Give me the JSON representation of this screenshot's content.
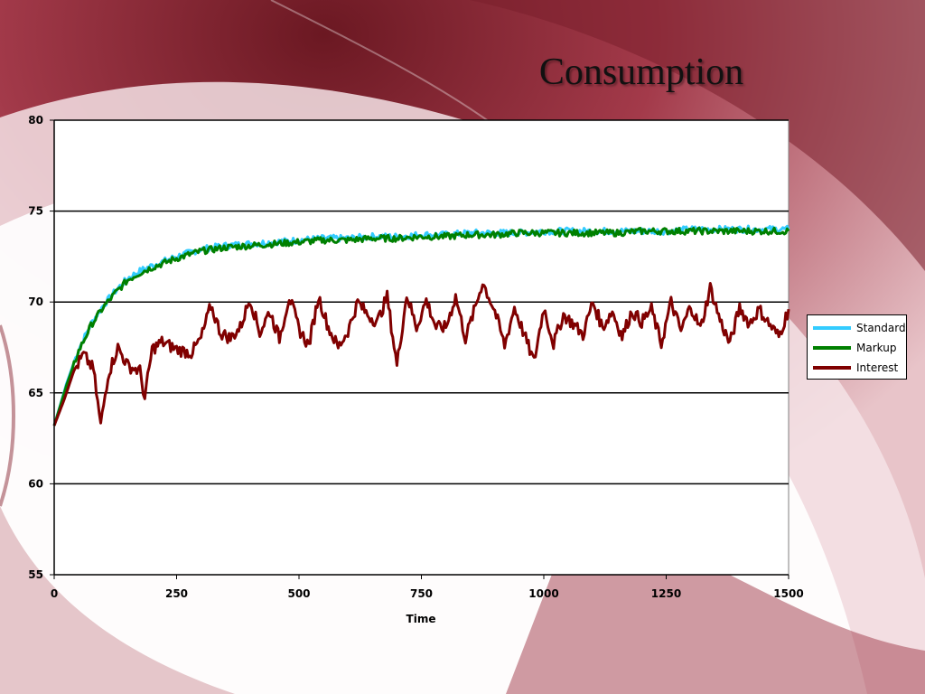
{
  "slide": {
    "title": "Consumption"
  },
  "colors": {
    "standard": "#33ccff",
    "markup": "#008000",
    "interest": "#800000",
    "grid": "#000000"
  },
  "chart_data": {
    "type": "line",
    "title": "",
    "xlabel": "Time",
    "ylabel": "",
    "xlim": [
      0,
      1500
    ],
    "ylim": [
      55,
      80
    ],
    "x_ticks": [
      "0",
      "250",
      "500",
      "750",
      "1000",
      "1250",
      "1500"
    ],
    "y_ticks": [
      "55",
      "60",
      "65",
      "70",
      "75",
      "80"
    ],
    "grid": "horizontal",
    "legend_position": "right",
    "series": [
      {
        "name": "Standard",
        "color": "#33ccff",
        "x": [
          0,
          25,
          50,
          75,
          100,
          125,
          150,
          175,
          200,
          250,
          300,
          350,
          400,
          450,
          500,
          550,
          600,
          650,
          700,
          750,
          800,
          850,
          900,
          950,
          1000,
          1050,
          1100,
          1150,
          1200,
          1250,
          1300,
          1350,
          1400,
          1450,
          1500
        ],
        "y": [
          63.2,
          65.5,
          67.4,
          68.8,
          69.8,
          70.6,
          71.3,
          71.7,
          72.0,
          72.5,
          72.9,
          73.1,
          73.2,
          73.3,
          73.4,
          73.5,
          73.5,
          73.6,
          73.6,
          73.7,
          73.7,
          73.8,
          73.8,
          73.8,
          73.9,
          73.9,
          73.9,
          73.9,
          73.9,
          73.9,
          74.0,
          74.0,
          74.0,
          74.0,
          74.0
        ]
      },
      {
        "name": "Markup",
        "color": "#008000",
        "x": [
          0,
          25,
          50,
          75,
          100,
          125,
          150,
          175,
          200,
          250,
          300,
          350,
          400,
          450,
          500,
          550,
          600,
          650,
          700,
          750,
          800,
          850,
          900,
          950,
          1000,
          1050,
          1100,
          1150,
          1200,
          1250,
          1300,
          1350,
          1400,
          1450,
          1500
        ],
        "y": [
          63.2,
          65.4,
          67.3,
          68.7,
          69.7,
          70.5,
          71.2,
          71.6,
          71.9,
          72.4,
          72.8,
          73.0,
          73.1,
          73.2,
          73.3,
          73.4,
          73.4,
          73.5,
          73.5,
          73.6,
          73.6,
          73.7,
          73.7,
          73.8,
          73.8,
          73.8,
          73.8,
          73.8,
          73.9,
          73.9,
          73.9,
          73.9,
          73.9,
          73.9,
          73.9
        ]
      },
      {
        "name": "Interest",
        "color": "#800000",
        "x": [
          0,
          20,
          40,
          60,
          80,
          95,
          110,
          130,
          150,
          175,
          185,
          200,
          220,
          250,
          280,
          300,
          320,
          340,
          360,
          380,
          400,
          420,
          440,
          460,
          480,
          500,
          520,
          540,
          560,
          580,
          600,
          620,
          640,
          660,
          680,
          700,
          720,
          740,
          760,
          780,
          800,
          820,
          840,
          860,
          875,
          900,
          920,
          940,
          960,
          980,
          1000,
          1020,
          1040,
          1060,
          1080,
          1100,
          1120,
          1140,
          1160,
          1180,
          1200,
          1220,
          1240,
          1260,
          1280,
          1300,
          1320,
          1340,
          1360,
          1380,
          1400,
          1420,
          1440,
          1460,
          1480,
          1500
        ],
        "y": [
          63.2,
          64.6,
          66.2,
          67.1,
          66.3,
          63.2,
          66.0,
          67.5,
          66.5,
          66.2,
          64.7,
          67.4,
          67.8,
          67.4,
          67.2,
          68.0,
          69.8,
          68.3,
          68.0,
          68.6,
          70.2,
          68.3,
          69.5,
          68.0,
          70.3,
          68.5,
          67.6,
          70.3,
          68.6,
          67.5,
          68.4,
          70.0,
          69.3,
          68.9,
          70.3,
          66.5,
          70.4,
          68.6,
          70.1,
          68.6,
          68.6,
          70.3,
          68.0,
          69.7,
          71.1,
          69.5,
          67.6,
          69.7,
          68.2,
          66.7,
          69.7,
          67.7,
          69.3,
          68.8,
          68.2,
          70.0,
          68.6,
          69.5,
          68.1,
          69.5,
          68.9,
          69.6,
          67.7,
          70.0,
          68.4,
          69.8,
          68.5,
          70.8,
          69.0,
          67.7,
          69.7,
          68.8,
          69.6,
          68.8,
          68.1,
          69.6
        ]
      }
    ]
  }
}
